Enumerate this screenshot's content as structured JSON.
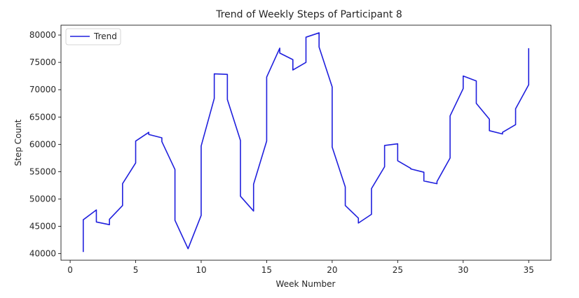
{
  "chart_data": {
    "type": "line",
    "title": "Trend of Weekly Steps of Participant 8",
    "xlabel": "Week Number",
    "ylabel": "Step Count",
    "xlim": [
      -0.7,
      36.7
    ],
    "ylim": [
      38800,
      81800
    ],
    "xticks": [
      0,
      5,
      10,
      15,
      20,
      25,
      30,
      35
    ],
    "yticks": [
      40000,
      45000,
      50000,
      55000,
      60000,
      65000,
      70000,
      75000,
      80000
    ],
    "grid": false,
    "legend": {
      "position": "top-left",
      "entries": [
        "Trend"
      ]
    },
    "series": [
      {
        "name": "Trend",
        "color": "#1f1fdd",
        "x": [
          1,
          1,
          2,
          2,
          3,
          3,
          4,
          4,
          5,
          5,
          6,
          6,
          7,
          7,
          8,
          8,
          9,
          10,
          10,
          11,
          11,
          12,
          12,
          13,
          13,
          14,
          14,
          15,
          15,
          16,
          16,
          17,
          17,
          18,
          18,
          19,
          19,
          20,
          20,
          21,
          21,
          22,
          22,
          23,
          23,
          24,
          24,
          25,
          25,
          26,
          26,
          27,
          27,
          28,
          28,
          29,
          29,
          30,
          30,
          31,
          31,
          32,
          32,
          33,
          33,
          34,
          34,
          35,
          35
        ],
        "y": [
          40300,
          46200,
          48000,
          45800,
          45300,
          46300,
          48800,
          52800,
          56600,
          60600,
          62200,
          61800,
          61200,
          60500,
          55400,
          46100,
          40900,
          47000,
          59700,
          68400,
          72900,
          72800,
          68200,
          60700,
          50500,
          47800,
          52700,
          60600,
          72300,
          77600,
          76700,
          75500,
          73600,
          75000,
          79600,
          80400,
          77800,
          70500,
          59500,
          52200,
          48800,
          46500,
          45600,
          47200,
          51900,
          55900,
          59800,
          60100,
          57000,
          55600,
          55500,
          54900,
          53300,
          52800,
          53200,
          57500,
          65200,
          70200,
          72500,
          71600,
          67500,
          64600,
          62500,
          61900,
          62200,
          63600,
          66500,
          70900,
          77600
        ]
      }
    ]
  }
}
